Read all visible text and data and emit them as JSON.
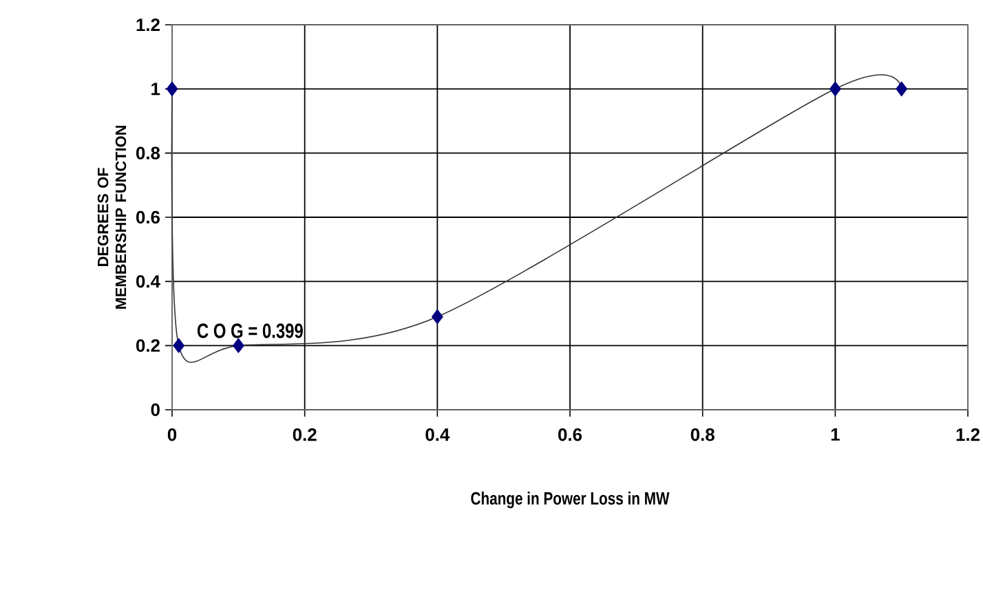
{
  "chart_data": {
    "type": "line",
    "xlabel": "Change in Power Loss in MW",
    "ylabel": "DEGREES OF MEMBERSHIP FUNCTION",
    "annotations": [
      "C O G = 0.399"
    ],
    "series": [
      {
        "color": "#000080",
        "x": [
          0,
          0.01,
          0.1,
          0.4,
          1,
          1.1
        ],
        "values": [
          1,
          0.2,
          0.2,
          0.29,
          1,
          1
        ]
      }
    ],
    "xlim": [
      0,
      1.2
    ],
    "xticks": [
      0,
      0.2,
      0.4,
      0.6,
      0.8,
      1,
      1.2
    ],
    "ylim": [
      0,
      1.2
    ],
    "yticks": [
      0,
      0.2,
      0.4,
      0.6,
      0.8,
      1,
      1.2
    ],
    "grid": true,
    "marker": "diamond",
    "line_style": "solid"
  }
}
